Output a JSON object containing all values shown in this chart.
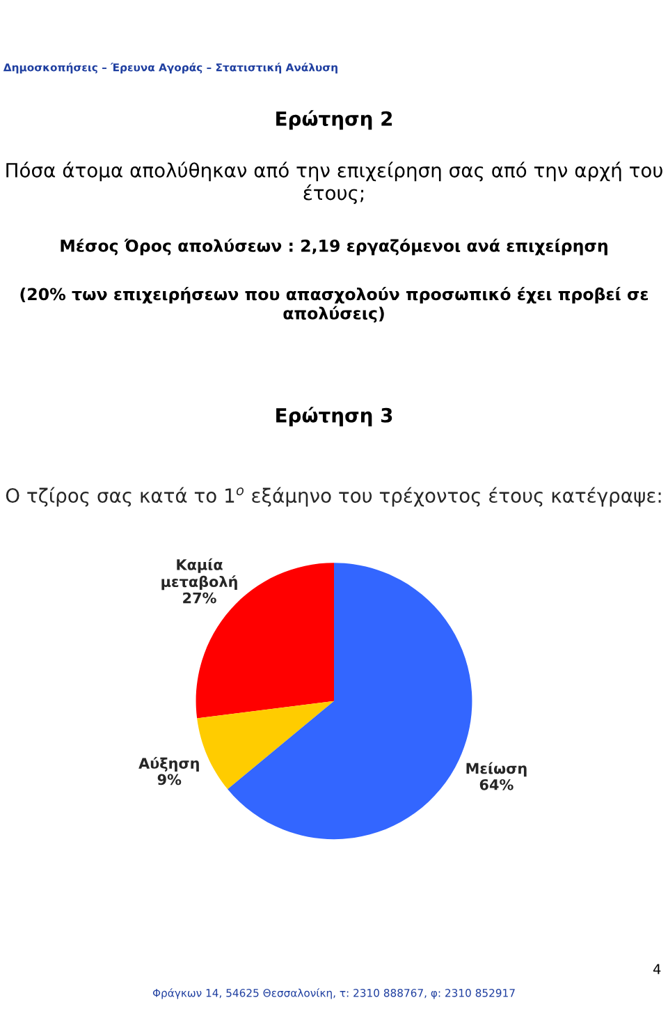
{
  "chart_data": {
    "type": "pie",
    "title": "Ο τζίρος σας κατά το 1$^{ο}$ εξάμηνο του τρέχοντος έτους κατέγραψε:",
    "categories": [
      "Καμία μεταβολή",
      "Αύξηση",
      "Μείωση"
    ],
    "values": [
      27,
      9,
      64
    ],
    "colors": [
      "#ff0000",
      "#ffcc00",
      "#3366ff"
    ],
    "value_labels": [
      "27%",
      "9%",
      "64%"
    ],
    "annotations": [
      "Δημοσκοπήσεις – Έρευνα Αγοράς – Στατιστική Ανάλυση",
      "Ερώτηση 2",
      "Πόσα άτομα απολύθηκαν από την επιχείρηση σας από την αρχή του έτους;",
      "Μέσος Όρος απολύσεων : 2,19 εργαζόμενοι ανά επιχείρηση",
      "(20% των επιχειρήσεων που απασχολούν προσωπικό έχει προβεί σε απολύσεις)",
      "Ερώτηση 3",
      "4",
      "Φράγκων 14, 54625 Θεσσαλονίκη, τ: 2310 888767, φ: 2310 852917"
    ]
  }
}
